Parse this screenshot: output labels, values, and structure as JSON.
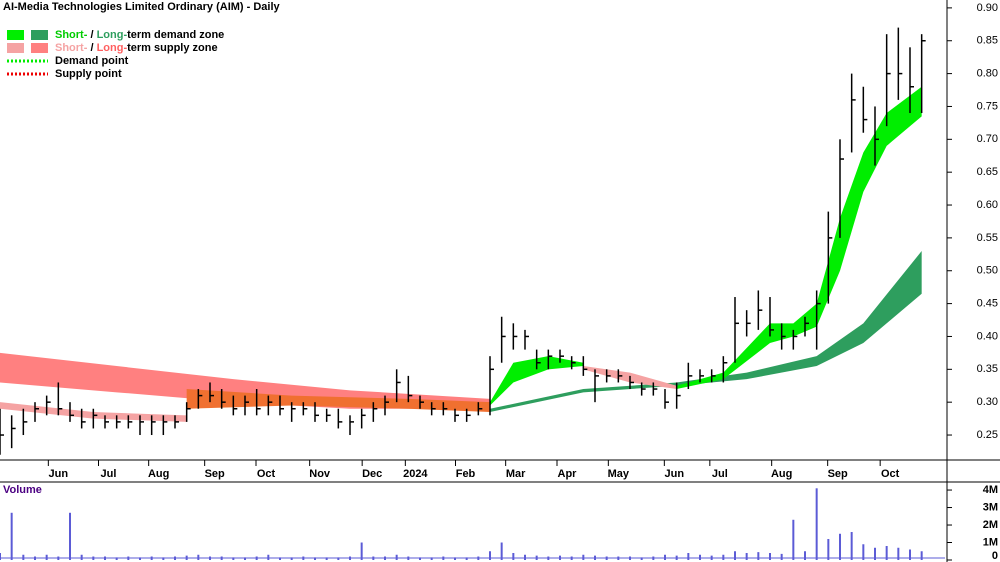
{
  "chart_data": [
    {
      "type": "hlc",
      "title": "AI-Media Technologies Limited Ordinary (AIM) - Daily",
      "color": "#000000",
      "x": [
        0,
        1,
        2,
        3,
        4,
        5,
        6,
        7,
        8,
        9,
        10,
        11,
        12,
        13,
        14,
        15,
        16,
        17,
        18,
        19,
        20,
        21,
        22,
        23,
        24,
        25,
        26,
        27,
        28,
        29,
        30,
        31,
        32,
        33,
        34,
        35,
        36,
        37,
        38,
        39,
        40,
        41,
        42,
        43,
        44,
        45,
        46,
        47,
        48,
        49,
        50,
        51,
        52,
        53,
        54,
        55,
        56,
        57,
        58,
        59,
        60,
        61,
        62,
        63,
        64,
        65,
        66,
        67,
        68,
        69,
        70,
        71,
        72,
        73,
        74,
        75,
        76,
        77,
        78,
        79
      ],
      "high": [
        0.29,
        0.28,
        0.29,
        0.3,
        0.31,
        0.33,
        0.3,
        0.29,
        0.29,
        0.28,
        0.28,
        0.28,
        0.28,
        0.28,
        0.28,
        0.28,
        0.3,
        0.32,
        0.33,
        0.32,
        0.31,
        0.31,
        0.32,
        0.31,
        0.31,
        0.3,
        0.3,
        0.3,
        0.29,
        0.29,
        0.28,
        0.29,
        0.3,
        0.31,
        0.35,
        0.34,
        0.31,
        0.3,
        0.3,
        0.29,
        0.29,
        0.3,
        0.37,
        0.43,
        0.42,
        0.41,
        0.38,
        0.38,
        0.38,
        0.37,
        0.37,
        0.35,
        0.35,
        0.35,
        0.34,
        0.33,
        0.33,
        0.32,
        0.33,
        0.36,
        0.35,
        0.35,
        0.37,
        0.46,
        0.44,
        0.47,
        0.46,
        0.42,
        0.41,
        0.43,
        0.47,
        0.59,
        0.7,
        0.8,
        0.78,
        0.75,
        0.86,
        0.87,
        0.84,
        0.86
      ],
      "low": [
        0.22,
        0.23,
        0.25,
        0.27,
        0.28,
        0.28,
        0.27,
        0.26,
        0.26,
        0.26,
        0.26,
        0.26,
        0.25,
        0.25,
        0.25,
        0.26,
        0.27,
        0.29,
        0.3,
        0.29,
        0.28,
        0.28,
        0.28,
        0.28,
        0.28,
        0.27,
        0.28,
        0.27,
        0.27,
        0.26,
        0.25,
        0.26,
        0.27,
        0.28,
        0.3,
        0.3,
        0.29,
        0.28,
        0.28,
        0.27,
        0.27,
        0.28,
        0.28,
        0.36,
        0.38,
        0.38,
        0.35,
        0.35,
        0.36,
        0.35,
        0.34,
        0.3,
        0.33,
        0.33,
        0.32,
        0.31,
        0.31,
        0.29,
        0.29,
        0.32,
        0.33,
        0.33,
        0.33,
        0.36,
        0.4,
        0.41,
        0.4,
        0.38,
        0.38,
        0.4,
        0.38,
        0.45,
        0.55,
        0.68,
        0.71,
        0.66,
        0.72,
        0.76,
        0.74,
        0.74
      ],
      "close": [
        0.25,
        0.26,
        0.27,
        0.29,
        0.3,
        0.29,
        0.28,
        0.27,
        0.28,
        0.27,
        0.27,
        0.27,
        0.27,
        0.27,
        0.27,
        0.27,
        0.29,
        0.31,
        0.31,
        0.3,
        0.29,
        0.3,
        0.29,
        0.3,
        0.29,
        0.29,
        0.29,
        0.28,
        0.28,
        0.27,
        0.27,
        0.28,
        0.29,
        0.3,
        0.33,
        0.31,
        0.3,
        0.29,
        0.29,
        0.28,
        0.28,
        0.29,
        0.35,
        0.4,
        0.4,
        0.4,
        0.36,
        0.37,
        0.37,
        0.36,
        0.35,
        0.34,
        0.34,
        0.34,
        0.33,
        0.32,
        0.32,
        0.3,
        0.31,
        0.34,
        0.34,
        0.34,
        0.36,
        0.42,
        0.42,
        0.44,
        0.41,
        0.4,
        0.4,
        0.42,
        0.45,
        0.55,
        0.67,
        0.76,
        0.73,
        0.7,
        0.8,
        0.8,
        0.78,
        0.85
      ],
      "xlim": [
        0,
        81
      ],
      "ylim": [
        0.212,
        0.912
      ],
      "yticks": [
        0.25,
        {
          "value": 0.3,
          "label": "0.30"
        },
        0.35,
        {
          "value": 0.4,
          "label": "0.40"
        },
        0.45,
        {
          "value": 0.5,
          "label": "0.50"
        },
        0.55,
        {
          "value": 0.6,
          "label": "0.60"
        },
        0.65,
        {
          "value": 0.7,
          "label": "0.70"
        },
        0.75,
        {
          "value": 0.8,
          "label": "0.80"
        },
        0.85,
        {
          "value": 0.9,
          "label": "0.90"
        }
      ],
      "xticks": [
        {
          "value": 5,
          "label": "Jun"
        },
        {
          "value": 9.3,
          "label": "Jul"
        },
        {
          "value": 13.6,
          "label": "Aug"
        },
        {
          "value": 18.4,
          "label": "Sep"
        },
        {
          "value": 22.8,
          "label": "Oct"
        },
        {
          "value": 27.4,
          "label": "Nov"
        },
        {
          "value": 31.9,
          "label": "Dec"
        },
        {
          "value": 35.6,
          "label": "2024"
        },
        {
          "value": 39.9,
          "label": "Feb"
        },
        {
          "value": 44.2,
          "label": "Mar"
        },
        {
          "value": 48.6,
          "label": "Apr"
        },
        {
          "value": 53,
          "label": "May"
        },
        {
          "value": 57.8,
          "label": "Jun"
        },
        {
          "value": 61.7,
          "label": "Jul"
        },
        {
          "value": 67,
          "label": "Aug"
        },
        {
          "value": 71.8,
          "label": "Sep"
        },
        {
          "value": 76.3,
          "label": "Oct"
        }
      ],
      "zones": [
        {
          "color": "#ff8080",
          "x": [
            0,
            10,
            20,
            30,
            42
          ],
          "upper": [
            0.375,
            0.355,
            0.335,
            0.318,
            0.305
          ],
          "lower": [
            0.33,
            0.315,
            0.3,
            0.29,
            0.29
          ]
        },
        {
          "color": "#2e9e5e",
          "x": [
            42,
            50,
            58,
            64,
            70,
            74,
            79
          ],
          "upper": [
            0.29,
            0.32,
            0.33,
            0.345,
            0.37,
            0.42,
            0.53
          ],
          "lower": [
            0.285,
            0.315,
            0.325,
            0.335,
            0.355,
            0.39,
            0.465
          ]
        },
        {
          "color": "#f5a3a3",
          "x": [
            0,
            8,
            16
          ],
          "upper": [
            0.3,
            0.285,
            0.28
          ],
          "lower": [
            0.29,
            0.275,
            0.27
          ]
        },
        {
          "color": "#f07030",
          "x": [
            16,
            25,
            35,
            42
          ],
          "upper": [
            0.32,
            0.31,
            0.305,
            0.3
          ],
          "lower": [
            0.29,
            0.295,
            0.29,
            0.285
          ]
        },
        {
          "color": "#00ee00",
          "x": [
            42,
            44,
            47,
            50
          ],
          "upper": [
            0.3,
            0.36,
            0.37,
            0.36
          ],
          "lower": [
            0.295,
            0.33,
            0.35,
            0.355
          ]
        },
        {
          "color": "#f5a3a3",
          "x": [
            50,
            54,
            58
          ],
          "upper": [
            0.355,
            0.345,
            0.325
          ],
          "lower": [
            0.35,
            0.33,
            0.32
          ]
        },
        {
          "color": "#00ee00",
          "x": [
            58,
            62,
            66,
            68,
            70,
            72,
            74,
            76,
            79
          ],
          "upper": [
            0.325,
            0.345,
            0.42,
            0.42,
            0.45,
            0.58,
            0.68,
            0.74,
            0.78
          ],
          "lower": [
            0.32,
            0.335,
            0.39,
            0.4,
            0.415,
            0.5,
            0.62,
            0.69,
            0.735
          ]
        }
      ],
      "legend": [
        {
          "swatches": [
            "#00ee00",
            "#2e9e5e"
          ],
          "parts": [
            {
              "text": "Short-",
              "color": "#00cc00"
            },
            {
              "text": " / ",
              "color": "#000000"
            },
            {
              "text": "Long-",
              "color": "#2e9e5e"
            },
            {
              "text": "term demand zone",
              "color": "#000000"
            }
          ]
        },
        {
          "swatches": [
            "#f5a3a3",
            "#ff8080"
          ],
          "parts": [
            {
              "text": "Short-",
              "color": "#f5a3a3"
            },
            {
              "text": " / ",
              "color": "#000000"
            },
            {
              "text": "Long-",
              "color": "#ff6060"
            },
            {
              "text": "term supply zone",
              "color": "#000000"
            }
          ]
        },
        {
          "line": "#00ee00",
          "parts": [
            {
              "text": "Demand point",
              "color": "#000000"
            }
          ]
        },
        {
          "line": "#ee0000",
          "parts": [
            {
              "text": "Supply point",
              "color": "#000000"
            }
          ]
        }
      ]
    },
    {
      "type": "bar",
      "title": "Volume",
      "color": "#5b5bd6",
      "x": [
        0,
        1,
        2,
        3,
        4,
        5,
        6,
        7,
        8,
        9,
        10,
        11,
        12,
        13,
        14,
        15,
        16,
        17,
        18,
        19,
        20,
        21,
        22,
        23,
        24,
        25,
        26,
        27,
        28,
        29,
        30,
        31,
        32,
        33,
        34,
        35,
        36,
        37,
        38,
        39,
        40,
        41,
        42,
        43,
        44,
        45,
        46,
        47,
        48,
        49,
        50,
        51,
        52,
        53,
        54,
        55,
        56,
        57,
        58,
        59,
        60,
        61,
        62,
        63,
        64,
        65,
        66,
        67,
        68,
        69,
        70,
        71,
        72,
        73,
        74,
        75,
        76,
        77,
        78,
        79
      ],
      "values": [
        400000,
        2700000,
        300000,
        200000,
        300000,
        200000,
        2700000,
        300000,
        200000,
        200000,
        150000,
        200000,
        150000,
        200000,
        150000,
        200000,
        250000,
        300000,
        200000,
        200000,
        150000,
        150000,
        200000,
        300000,
        150000,
        150000,
        200000,
        150000,
        150000,
        150000,
        200000,
        1000000,
        200000,
        200000,
        300000,
        200000,
        150000,
        150000,
        200000,
        150000,
        150000,
        200000,
        500000,
        1000000,
        400000,
        300000,
        250000,
        200000,
        250000,
        200000,
        300000,
        250000,
        200000,
        200000,
        200000,
        150000,
        200000,
        300000,
        250000,
        400000,
        300000,
        250000,
        300000,
        500000,
        400000,
        450000,
        400000,
        350000,
        2300000,
        500000,
        4100000,
        1200000,
        1500000,
        1600000,
        900000,
        700000,
        800000,
        700000,
        600000,
        500000
      ],
      "xlim": [
        0,
        81
      ],
      "ylim": [
        0,
        4460000
      ],
      "yticks": [
        {
          "value": 0,
          "label": "0"
        },
        {
          "value": 1000000,
          "label": "1M"
        },
        {
          "value": 2000000,
          "label": "2M"
        },
        {
          "value": 3000000,
          "label": "3M"
        },
        {
          "value": 4000000,
          "label": "4M"
        }
      ]
    }
  ]
}
